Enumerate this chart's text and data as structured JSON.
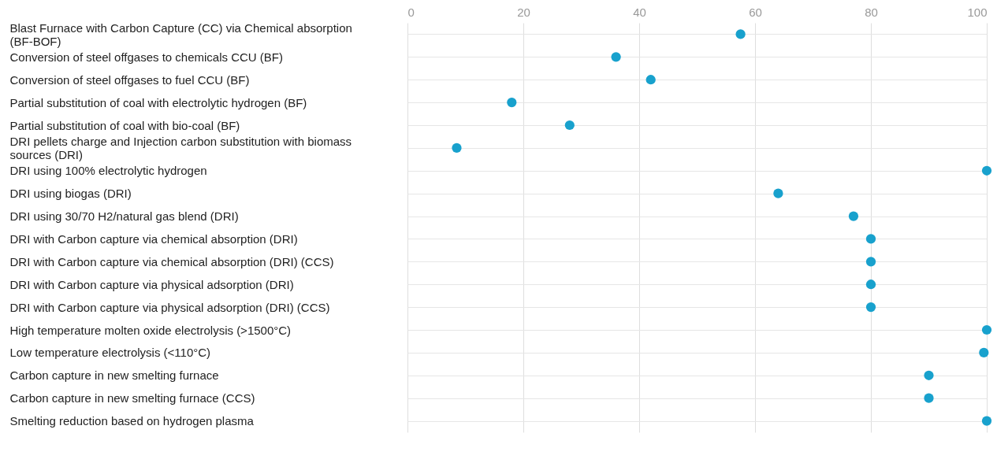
{
  "chart_data": {
    "type": "scatter",
    "categories": [
      "Blast Furnace with Carbon Capture (CC) via Chemical absorption (BF-BOF)",
      "Conversion of steel offgases to chemicals CCU (BF)",
      "Conversion of steel offgases to fuel CCU (BF)",
      "Partial substitution of coal with electrolytic hydrogen (BF)",
      "Partial substitution of coal with bio-coal (BF)",
      "DRI pellets charge and Injection carbon substitution with biomass sources (DRI)",
      "DRI using 100% electrolytic hydrogen",
      "DRI using biogas (DRI)",
      "DRI using 30/70 H2/natural gas blend (DRI)",
      "DRI with Carbon capture via chemical absorption (DRI)",
      "DRI with Carbon capture via chemical absorption (DRI) (CCS)",
      "DRI with Carbon capture via physical adsorption (DRI)",
      "DRI with Carbon capture via physical adsorption (DRI) (CCS)",
      "High temperature molten oxide electrolysis (>1500°C)",
      "Low temperature electrolysis (<110°C)",
      "Carbon capture in new smelting furnace",
      "Carbon capture in new smelting furnace (CCS)",
      "Smelting reduction based on hydrogen plasma"
    ],
    "orientation": "horizontal",
    "series": [
      {
        "color": "#18a1cd",
        "values": [
          57.5,
          36,
          42,
          18,
          28,
          8.5,
          100,
          64,
          77,
          80,
          80,
          80,
          80,
          100,
          99.5,
          90,
          90,
          100
        ]
      }
    ],
    "xlim": [
      0,
      100
    ],
    "xticks": [
      0,
      20,
      40,
      60,
      80,
      100
    ],
    "grid": true,
    "marker": "circle"
  }
}
